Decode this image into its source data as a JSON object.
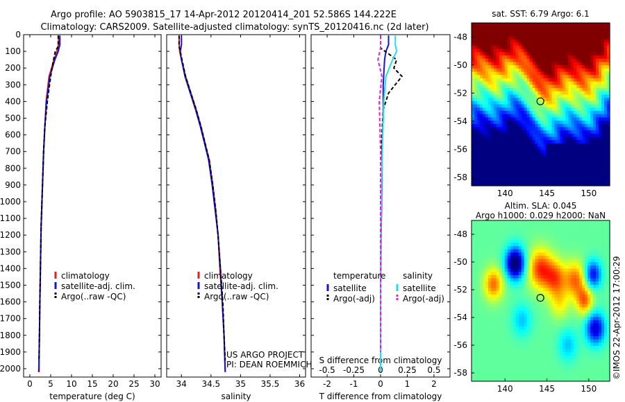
{
  "figure": {
    "title_line1": "Argo profile: AO 5903815_17 14-Apr-2012 20120414_201 52.586S 144.222E",
    "title_line2": "Climatology: CARS2009. Satellite-adjusted climatology: synTS_20120416.nc (2d later)",
    "credit_line1": "US ARGO PROJECT",
    "credit_line2": "PI: DEAN ROEMMICH",
    "watermark": "©IMOS 22-Apr-2012 17:00:29"
  },
  "colors": {
    "climatology": "#e8201a",
    "satellite": "#1212e0",
    "argo": "#000000",
    "satellite_salinity": "#22e0e0",
    "argo_salinity": "#e020e0"
  },
  "depth_axis": {
    "range": [
      0,
      2050
    ],
    "ticks": [
      "0",
      "100",
      "200",
      "300",
      "400",
      "500",
      "600",
      "700",
      "800",
      "900",
      "1000",
      "1100",
      "1200",
      "1300",
      "1400",
      "1500",
      "1600",
      "1700",
      "1800",
      "1900",
      "2000"
    ]
  },
  "chart_data": [
    {
      "type": "line",
      "xlabel": "temperature (deg C)",
      "ylabel": "",
      "xlim": [
        -1.5,
        31.5
      ],
      "ylim": [
        2050,
        0
      ],
      "x_ticks": [
        "0",
        "5",
        "10",
        "15",
        "20",
        "25",
        "30"
      ],
      "legend": [
        "climatology",
        "satellite-adj. clim.",
        "Argo(..raw -QC)"
      ],
      "legend_position": "lower-right",
      "series": [
        {
          "name": "climatology",
          "color_key": "climatology",
          "dash": false,
          "x": [
            6.9,
            6.9,
            6.5,
            5.8,
            4.6,
            3.9,
            3.6,
            3.3,
            3.1,
            2.9,
            2.7,
            2.6,
            2.5,
            2.4,
            2.3,
            2.2,
            2.1
          ],
          "y": [
            5,
            60,
            100,
            150,
            250,
            400,
            550,
            700,
            850,
            1000,
            1150,
            1300,
            1450,
            1600,
            1800,
            1950,
            2020
          ]
        },
        {
          "name": "satellite-adj. clim.",
          "color_key": "satellite",
          "dash": false,
          "x": [
            7.2,
            7.2,
            6.8,
            6.0,
            4.8,
            4.0,
            3.6,
            3.3,
            3.1,
            2.9,
            2.7,
            2.6,
            2.5,
            2.4,
            2.3,
            2.2,
            2.2
          ],
          "y": [
            5,
            60,
            100,
            150,
            250,
            400,
            550,
            700,
            850,
            1000,
            1150,
            1300,
            1450,
            1600,
            1800,
            1950,
            2020
          ]
        },
        {
          "name": "Argo(..raw -QC)",
          "color_key": "argo",
          "dash": true,
          "x": [
            6.8,
            6.8,
            6.1,
            5.6,
            5.0,
            4.2,
            3.6,
            3.3,
            3.1,
            2.9,
            2.7,
            2.6,
            2.5,
            2.4,
            2.3,
            2.2
          ],
          "y": [
            5,
            70,
            100,
            160,
            250,
            400,
            550,
            700,
            850,
            1000,
            1150,
            1300,
            1450,
            1600,
            1800,
            1950
          ]
        }
      ]
    },
    {
      "type": "line",
      "xlabel": "salinity",
      "ylabel": "",
      "xlim": [
        33.75,
        36.1
      ],
      "ylim": [
        2050,
        0
      ],
      "x_ticks": [
        "34",
        "34.5",
        "35",
        "35.5",
        "36"
      ],
      "legend": [
        "climatology",
        "satellite-adj. clim.",
        "Argo(..raw -QC)"
      ],
      "legend_position": "lower-right",
      "series": [
        {
          "name": "climatology",
          "color_key": "climatology",
          "dash": false,
          "x": [
            33.96,
            33.96,
            33.97,
            34.0,
            34.07,
            34.16,
            34.25,
            34.33,
            34.4,
            34.47,
            34.53,
            34.58,
            34.62,
            34.65,
            34.69,
            34.72,
            34.74
          ],
          "y": [
            5,
            60,
            100,
            150,
            250,
            350,
            450,
            550,
            650,
            750,
            900,
            1050,
            1200,
            1400,
            1600,
            1800,
            2020
          ]
        },
        {
          "name": "satellite-adj. clim.",
          "color_key": "satellite",
          "dash": false,
          "x": [
            34.0,
            34.0,
            33.98,
            34.0,
            34.06,
            34.15,
            34.24,
            34.32,
            34.39,
            34.46,
            34.52,
            34.57,
            34.62,
            34.66,
            34.69,
            34.72,
            34.74
          ],
          "y": [
            5,
            60,
            100,
            150,
            250,
            350,
            450,
            550,
            650,
            750,
            900,
            1050,
            1200,
            1400,
            1600,
            1800,
            2020
          ]
        },
        {
          "name": "Argo(..raw -QC)",
          "color_key": "argo",
          "dash": true,
          "x": [
            33.96,
            33.96,
            33.98,
            34.01,
            34.07,
            34.16,
            34.25,
            34.33,
            34.4,
            34.47,
            34.53,
            34.58,
            34.62,
            34.66,
            34.7,
            34.72,
            34.74
          ],
          "y": [
            5,
            70,
            100,
            150,
            250,
            350,
            450,
            550,
            650,
            750,
            900,
            1050,
            1200,
            1400,
            1600,
            1800,
            1950
          ]
        }
      ]
    },
    {
      "type": "line",
      "xlabel": "T difference from climatology",
      "xlabel_top": "S difference from climatology",
      "ylabel": "",
      "xlim": [
        -2.6,
        2.6
      ],
      "ylim": [
        2050,
        0
      ],
      "x_ticks": [
        "-2",
        "-1",
        "0",
        "1",
        "2"
      ],
      "x_top_ticks": [
        "-0.5",
        "-0.25",
        "0",
        "0.25",
        "0.5"
      ],
      "legend_groups": [
        {
          "title": "temperature",
          "items": [
            "satellite",
            "Argo(-adj)"
          ]
        },
        {
          "title": "salinity",
          "items": [
            "satellite",
            "Argo(-adj)"
          ]
        }
      ],
      "series": [
        {
          "name": "temperature satellite",
          "color_key": "satellite",
          "dash": false,
          "x": [
            0.3,
            0.3,
            0.2,
            0.15,
            0.1,
            0.1,
            0.05,
            0.05,
            0.02,
            0.0,
            0.0,
            0.0
          ],
          "y": [
            5,
            60,
            100,
            150,
            300,
            500,
            700,
            900,
            1200,
            1500,
            1800,
            2020
          ]
        },
        {
          "name": "temperature Argo(-adj)",
          "color_key": "argo",
          "dash": true,
          "x": [
            0.0,
            0.0,
            0.6,
            0.5,
            0.8,
            0.3,
            0.1,
            0.05,
            0.0,
            0.0,
            0.0,
            0.0
          ],
          "y": [
            5,
            80,
            150,
            200,
            250,
            350,
            450,
            600,
            900,
            1200,
            1600,
            1950
          ]
        },
        {
          "name": "salinity satellite",
          "color_key": "satellite_salinity",
          "dash": false,
          "x": [
            0.55,
            0.55,
            0.6,
            0.45,
            0.2,
            0.12,
            0.08,
            0.05,
            0.02,
            0.0,
            0.0,
            0.0
          ],
          "y": [
            5,
            60,
            100,
            150,
            250,
            400,
            600,
            800,
            1100,
            1400,
            1700,
            2020
          ]
        },
        {
          "name": "salinity Argo(-adj)",
          "color_key": "argo_salinity",
          "dash": true,
          "x": [
            0.0,
            0.0,
            -0.1,
            0.05,
            -0.05,
            0.0,
            0.0,
            0.0
          ],
          "y": [
            5,
            80,
            150,
            250,
            400,
            700,
            1200,
            1900
          ]
        }
      ]
    },
    {
      "type": "heatmap",
      "title": "sat. SST: 6.79 Argo: 6.1",
      "xlim": [
        136,
        152.5
      ],
      "ylim": [
        -58.6,
        -47
      ],
      "x_ticks": [
        "140",
        "145",
        "150"
      ],
      "y_ticks": [
        "-48",
        "-50",
        "-52",
        "-54",
        "-56",
        "-58"
      ],
      "marker": {
        "lon": 144.222,
        "lat": -52.586
      }
    },
    {
      "type": "heatmap",
      "title_line1": "Altim. SLA: 0.045",
      "title_line2": "Argo h1000: 0.029 h2000: NaN",
      "xlim": [
        136,
        152.5
      ],
      "ylim": [
        -58.6,
        -47
      ],
      "x_ticks": [
        "140",
        "145",
        "150"
      ],
      "y_ticks": [
        "-48",
        "-50",
        "-52",
        "-54",
        "-56",
        "-58"
      ],
      "marker": {
        "lon": 144.222,
        "lat": -52.586
      }
    }
  ]
}
